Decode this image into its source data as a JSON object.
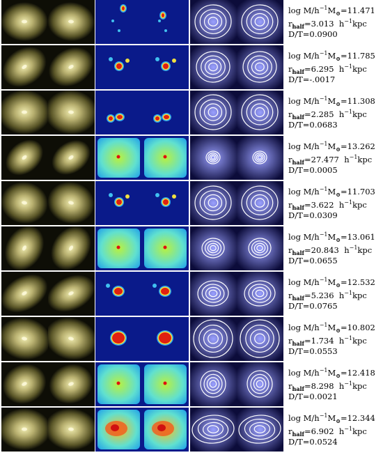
{
  "rows": [
    {
      "mass": "11.471",
      "rhalf": "3.013",
      "dt": "0.0900"
    },
    {
      "mass": "11.785",
      "rhalf": "6.295",
      "dt": "-.0017"
    },
    {
      "mass": "11.308",
      "rhalf": "2.285",
      "dt": "0.0683"
    },
    {
      "mass": "13.262",
      "rhalf": "27.477",
      "dt": "0.0005"
    },
    {
      "mass": "11.703",
      "rhalf": "3.622",
      "dt": "0.0309"
    },
    {
      "mass": "13.061",
      "rhalf": "20.843",
      "dt": "0.0655"
    },
    {
      "mass": "12.532",
      "rhalf": "5.236",
      "dt": "0.0765"
    },
    {
      "mass": "10.802",
      "rhalf": "1.734",
      "dt": "0.0553"
    },
    {
      "mass": "12.418",
      "rhalf": "8.298",
      "dt": "0.0021"
    },
    {
      "mass": "12.344",
      "rhalf": "6.902",
      "dt": "0.0524"
    }
  ],
  "labels": {
    "log": "log M/h",
    "minus_one": "−1",
    "msun": "M",
    "sun_symbol": "⊙",
    "r": "r",
    "half": "half",
    "unit_h": "h",
    "unit_kpc": "kpc",
    "dt_prefix": "D/T="
  },
  "colors": {
    "optical_core": "#f0ecb0",
    "optical_halo": "#5a5628",
    "map_bg": "#0a1a8a",
    "contour_bg": "#4a4ac0",
    "contour_line": "#ffffff"
  }
}
